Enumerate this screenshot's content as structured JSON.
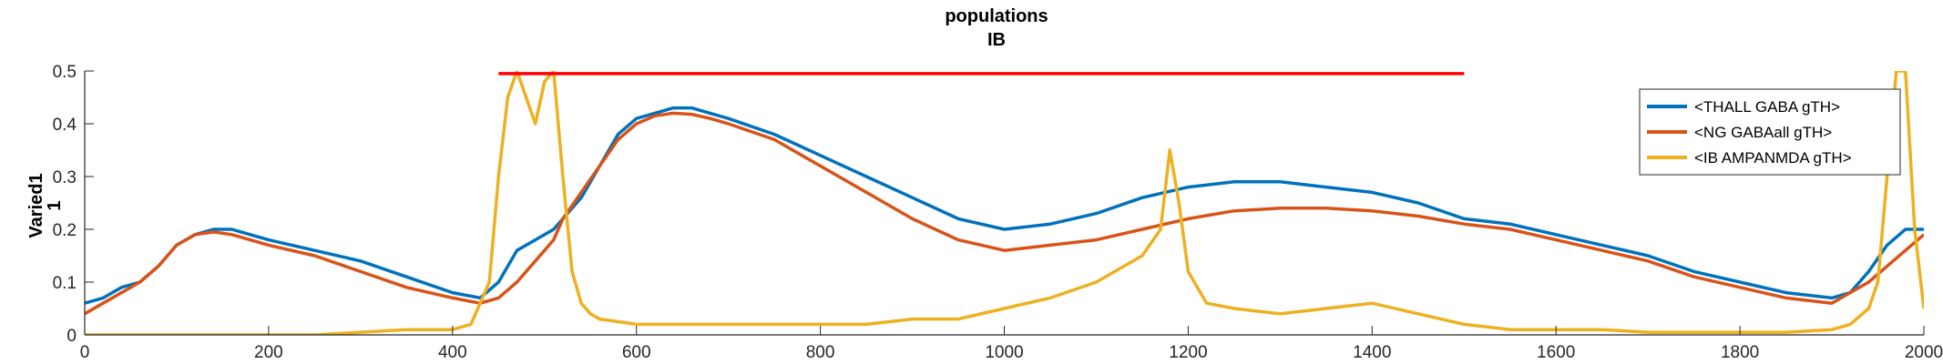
{
  "chart_data": {
    "type": "line",
    "title": "populations",
    "subtitle": "IB",
    "ylabel": "Varied1",
    "ylabel2": "1",
    "xlim": [
      0,
      2000
    ],
    "ylim": [
      0,
      0.5
    ],
    "xticks": [
      0,
      200,
      400,
      600,
      800,
      1000,
      1200,
      1400,
      1600,
      1800,
      2000
    ],
    "yticks": [
      0,
      0.1,
      0.2,
      0.3,
      0.4,
      0.5
    ],
    "grid": false,
    "legend_position": "top-right",
    "series": [
      {
        "name": "<THALL GABA gTH>",
        "color": "#0072BD",
        "x": [
          0,
          20,
          40,
          60,
          80,
          100,
          120,
          140,
          160,
          180,
          200,
          250,
          300,
          350,
          400,
          430,
          450,
          470,
          490,
          510,
          520,
          540,
          560,
          580,
          600,
          620,
          640,
          660,
          680,
          700,
          750,
          800,
          850,
          900,
          950,
          1000,
          1050,
          1100,
          1150,
          1200,
          1250,
          1300,
          1350,
          1400,
          1450,
          1500,
          1550,
          1600,
          1650,
          1700,
          1750,
          1800,
          1850,
          1900,
          1920,
          1940,
          1960,
          1980,
          2000
        ],
        "y": [
          0.06,
          0.07,
          0.09,
          0.1,
          0.13,
          0.17,
          0.19,
          0.2,
          0.2,
          0.19,
          0.18,
          0.16,
          0.14,
          0.11,
          0.08,
          0.07,
          0.1,
          0.16,
          0.18,
          0.2,
          0.22,
          0.26,
          0.32,
          0.38,
          0.41,
          0.42,
          0.43,
          0.43,
          0.42,
          0.41,
          0.38,
          0.34,
          0.3,
          0.26,
          0.22,
          0.2,
          0.21,
          0.23,
          0.26,
          0.28,
          0.29,
          0.29,
          0.28,
          0.27,
          0.25,
          0.22,
          0.21,
          0.19,
          0.17,
          0.15,
          0.12,
          0.1,
          0.08,
          0.07,
          0.08,
          0.12,
          0.17,
          0.2,
          0.2
        ]
      },
      {
        "name": "<NG GABAall gTH>",
        "color": "#D95319",
        "x": [
          0,
          20,
          40,
          60,
          80,
          100,
          120,
          140,
          160,
          180,
          200,
          250,
          300,
          350,
          400,
          430,
          450,
          470,
          490,
          510,
          520,
          540,
          560,
          580,
          600,
          620,
          640,
          660,
          680,
          700,
          750,
          800,
          850,
          900,
          950,
          1000,
          1050,
          1100,
          1150,
          1200,
          1250,
          1300,
          1350,
          1400,
          1450,
          1500,
          1550,
          1600,
          1650,
          1700,
          1750,
          1800,
          1850,
          1900,
          1920,
          1940,
          1960,
          1980,
          2000
        ],
        "y": [
          0.04,
          0.06,
          0.08,
          0.1,
          0.13,
          0.17,
          0.19,
          0.195,
          0.19,
          0.18,
          0.17,
          0.15,
          0.12,
          0.09,
          0.07,
          0.06,
          0.07,
          0.1,
          0.14,
          0.18,
          0.22,
          0.27,
          0.32,
          0.37,
          0.4,
          0.415,
          0.42,
          0.418,
          0.41,
          0.4,
          0.37,
          0.32,
          0.27,
          0.22,
          0.18,
          0.16,
          0.17,
          0.18,
          0.2,
          0.22,
          0.235,
          0.24,
          0.24,
          0.235,
          0.225,
          0.21,
          0.2,
          0.18,
          0.16,
          0.14,
          0.11,
          0.09,
          0.07,
          0.06,
          0.08,
          0.1,
          0.13,
          0.16,
          0.19
        ]
      },
      {
        "name": "<IB AMPANMDA gTH>",
        "color": "#EDB120",
        "x": [
          0,
          50,
          100,
          150,
          200,
          250,
          300,
          350,
          400,
          420,
          440,
          450,
          460,
          470,
          480,
          490,
          500,
          510,
          520,
          530,
          540,
          550,
          560,
          600,
          650,
          700,
          750,
          800,
          850,
          900,
          950,
          1000,
          1050,
          1100,
          1150,
          1170,
          1180,
          1190,
          1200,
          1220,
          1250,
          1300,
          1350,
          1400,
          1450,
          1500,
          1550,
          1600,
          1650,
          1700,
          1750,
          1800,
          1850,
          1900,
          1920,
          1940,
          1950,
          1960,
          1970,
          1980,
          1990,
          2000
        ],
        "y": [
          0.0,
          0.0,
          0.0,
          0.0,
          0.0,
          0.0,
          0.005,
          0.01,
          0.01,
          0.02,
          0.1,
          0.3,
          0.45,
          0.5,
          0.45,
          0.4,
          0.48,
          0.5,
          0.3,
          0.12,
          0.06,
          0.04,
          0.03,
          0.02,
          0.02,
          0.02,
          0.02,
          0.02,
          0.02,
          0.03,
          0.03,
          0.05,
          0.07,
          0.1,
          0.15,
          0.2,
          0.35,
          0.25,
          0.12,
          0.06,
          0.05,
          0.04,
          0.05,
          0.06,
          0.04,
          0.02,
          0.01,
          0.01,
          0.01,
          0.005,
          0.005,
          0.005,
          0.005,
          0.01,
          0.02,
          0.05,
          0.1,
          0.3,
          0.5,
          0.5,
          0.2,
          0.05
        ]
      },
      {
        "name": "",
        "color": "#FF0000",
        "x": [
          450,
          1500
        ],
        "y": [
          0.495,
          0.495
        ]
      }
    ]
  }
}
